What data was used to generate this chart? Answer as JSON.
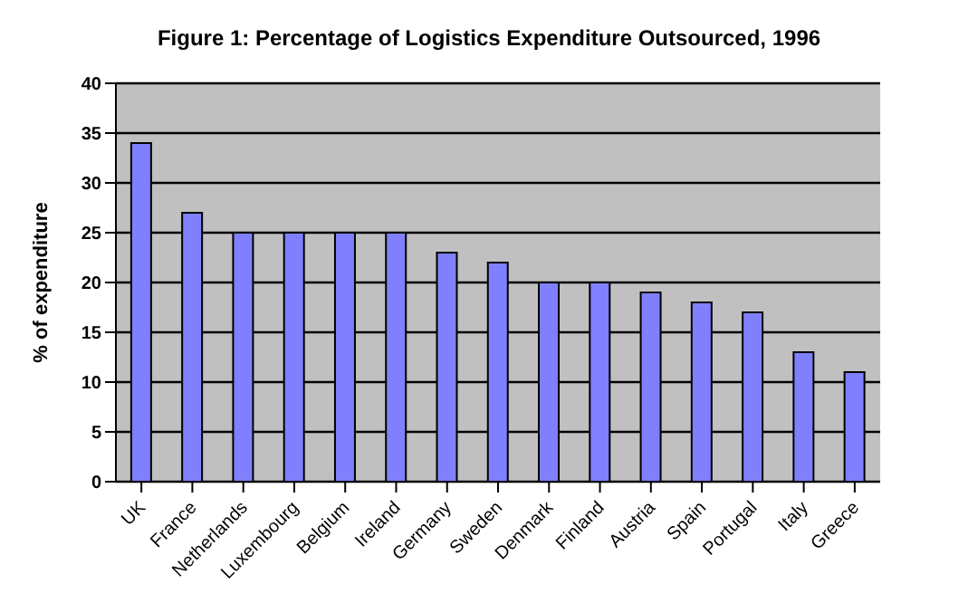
{
  "chart_data": {
    "type": "bar",
    "title": "Figure 1: Percentage of Logistics Expenditure Outsourced, 1996",
    "ylabel": "% of expenditure",
    "categories": [
      "UK",
      "France",
      "Netherlands",
      "Luxembourg",
      "Belgium",
      "Ireland",
      "Germany",
      "Sweden",
      "Denmark",
      "Finland",
      "Austria",
      "Spain",
      "Portugal",
      "Italy",
      "Greece"
    ],
    "values": [
      34,
      27,
      25,
      25,
      25,
      25,
      23,
      22,
      20,
      20,
      19,
      18,
      17,
      13,
      11
    ],
    "color": "#8080ff",
    "ylim": [
      0,
      40
    ],
    "yticks": [
      0,
      5,
      10,
      15,
      20,
      25,
      30,
      35,
      40
    ],
    "grid": "y"
  }
}
